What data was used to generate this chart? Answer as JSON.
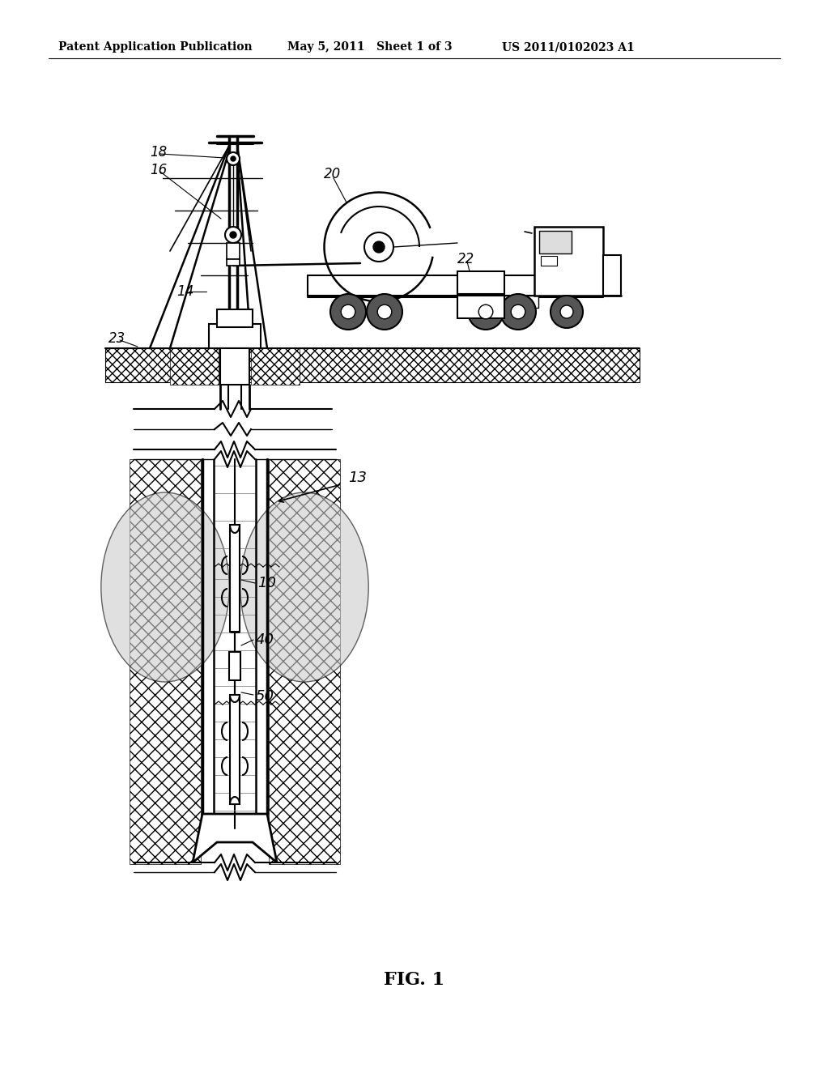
{
  "header_left": "Patent Application Publication",
  "header_mid": "May 5, 2011   Sheet 1 of 3",
  "header_right": "US 2011/0102023 A1",
  "footer": "FIG. 1",
  "bg_color": "#ffffff",
  "line_color": "#000000"
}
